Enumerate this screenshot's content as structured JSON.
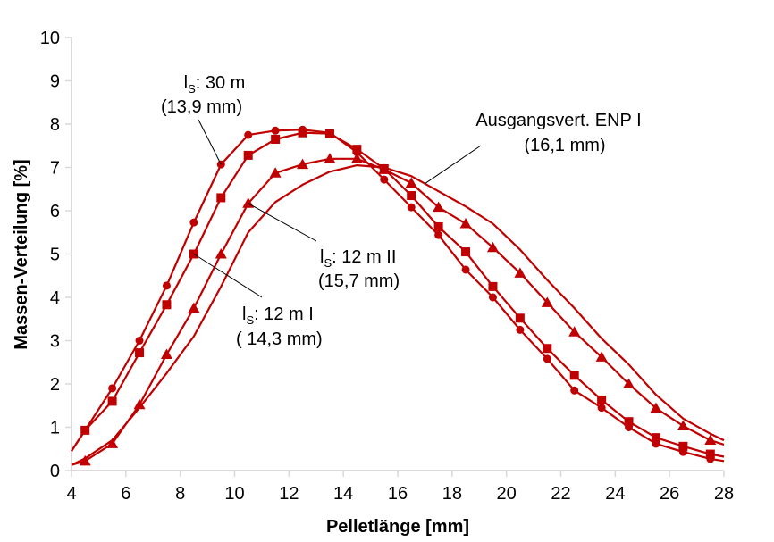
{
  "chart_data": {
    "type": "line",
    "title": "",
    "xlabel": "Pelletlänge [mm]",
    "ylabel": "Massen-Verteilung [%]",
    "xlim": [
      4,
      28
    ],
    "ylim": [
      0,
      10
    ],
    "xticks": [
      "4",
      "6",
      "8",
      "10",
      "12",
      "14",
      "16",
      "18",
      "20",
      "22",
      "24",
      "26",
      "28"
    ],
    "yticks": [
      "0",
      "1",
      "2",
      "3",
      "4",
      "5",
      "6",
      "7",
      "8",
      "9",
      "10"
    ],
    "grid": false,
    "legend": "none",
    "color": "#c00000",
    "series": [
      {
        "name": "lS: 30 m",
        "marker": "circle",
        "x": [
          4,
          4.5,
          5.5,
          6.5,
          7.5,
          8.5,
          9.5,
          10.5,
          11.5,
          12.5,
          13.5,
          14.5,
          15.5,
          16.5,
          17.5,
          18.5,
          19.5,
          20.5,
          21.5,
          22.5,
          23.5,
          24.5,
          25.5,
          26.5,
          27.5,
          28
        ],
        "y": [
          0.45,
          0.93,
          1.9,
          3.0,
          4.27,
          5.73,
          7.07,
          7.75,
          7.85,
          7.87,
          7.8,
          7.35,
          6.72,
          6.08,
          5.44,
          4.64,
          4.0,
          3.25,
          2.58,
          1.85,
          1.45,
          1.0,
          0.62,
          0.43,
          0.27,
          0.22
        ]
      },
      {
        "name": "lS: 12 m I",
        "marker": "square",
        "x": [
          4,
          4.5,
          5.5,
          6.5,
          7.5,
          8.5,
          9.5,
          10.5,
          11.5,
          12.5,
          13.5,
          14.5,
          15.5,
          16.5,
          17.5,
          18.5,
          19.5,
          20.5,
          21.5,
          22.5,
          23.5,
          24.5,
          25.5,
          26.5,
          27.5,
          28
        ],
        "y": [
          0.45,
          0.93,
          1.6,
          2.72,
          3.83,
          5.0,
          6.3,
          7.28,
          7.65,
          7.8,
          7.78,
          7.42,
          6.97,
          6.35,
          5.63,
          5.05,
          4.25,
          3.52,
          2.82,
          2.2,
          1.63,
          1.13,
          0.76,
          0.56,
          0.38,
          0.32
        ]
      },
      {
        "name": "lS: 12 m II",
        "marker": "triangle",
        "x": [
          4,
          4.5,
          5.5,
          6.5,
          7.5,
          8.5,
          9.5,
          10.5,
          11.5,
          12.5,
          13.5,
          14.5,
          15.5,
          16.5,
          17.5,
          18.5,
          19.5,
          20.5,
          21.5,
          22.5,
          23.5,
          24.5,
          25.5,
          26.5,
          27.5,
          28
        ],
        "y": [
          0.13,
          0.22,
          0.62,
          1.52,
          2.68,
          3.75,
          5.0,
          6.17,
          6.87,
          7.07,
          7.2,
          7.2,
          6.95,
          6.64,
          6.08,
          5.7,
          5.15,
          4.56,
          3.88,
          3.2,
          2.62,
          2.0,
          1.44,
          1.03,
          0.7,
          0.6
        ]
      },
      {
        "name": "Ausgangsvert. ENP I",
        "marker": "none",
        "x": [
          4,
          4.5,
          5.5,
          6.5,
          7.5,
          8.5,
          9.5,
          10.5,
          11.5,
          12.5,
          13.5,
          14.5,
          15.5,
          16.5,
          17.5,
          18.5,
          19.5,
          20.5,
          21.5,
          22.5,
          23.5,
          24.5,
          25.5,
          26.5,
          27.5,
          28
        ],
        "y": [
          0.13,
          0.28,
          0.7,
          1.45,
          2.25,
          3.1,
          4.25,
          5.5,
          6.2,
          6.6,
          6.9,
          7.05,
          7.0,
          6.8,
          6.45,
          6.1,
          5.7,
          5.1,
          4.4,
          3.75,
          3.05,
          2.45,
          1.75,
          1.2,
          0.85,
          0.7
        ]
      }
    ],
    "annotations": [
      {
        "text_main": "l",
        "text_sub": "S",
        "text_rest": ": 30 m",
        "line2": "(13,9 mm)",
        "series": 0,
        "point_x": 9.5
      },
      {
        "text_main": "Ausgangsvert. ENP I",
        "line2": "(16,1 mm)",
        "series": 3,
        "point_x": 17.0
      },
      {
        "text_main": "l",
        "text_sub": "S",
        "text_rest": ": 12 m II",
        "line2": "(15,7 mm)",
        "series": 2,
        "point_x": 10.5
      },
      {
        "text_main": "l",
        "text_sub": "S",
        "text_rest": ": 12 m I",
        "line2": "( 14,3 mm)",
        "series": 1,
        "point_x": 8.5
      }
    ]
  }
}
